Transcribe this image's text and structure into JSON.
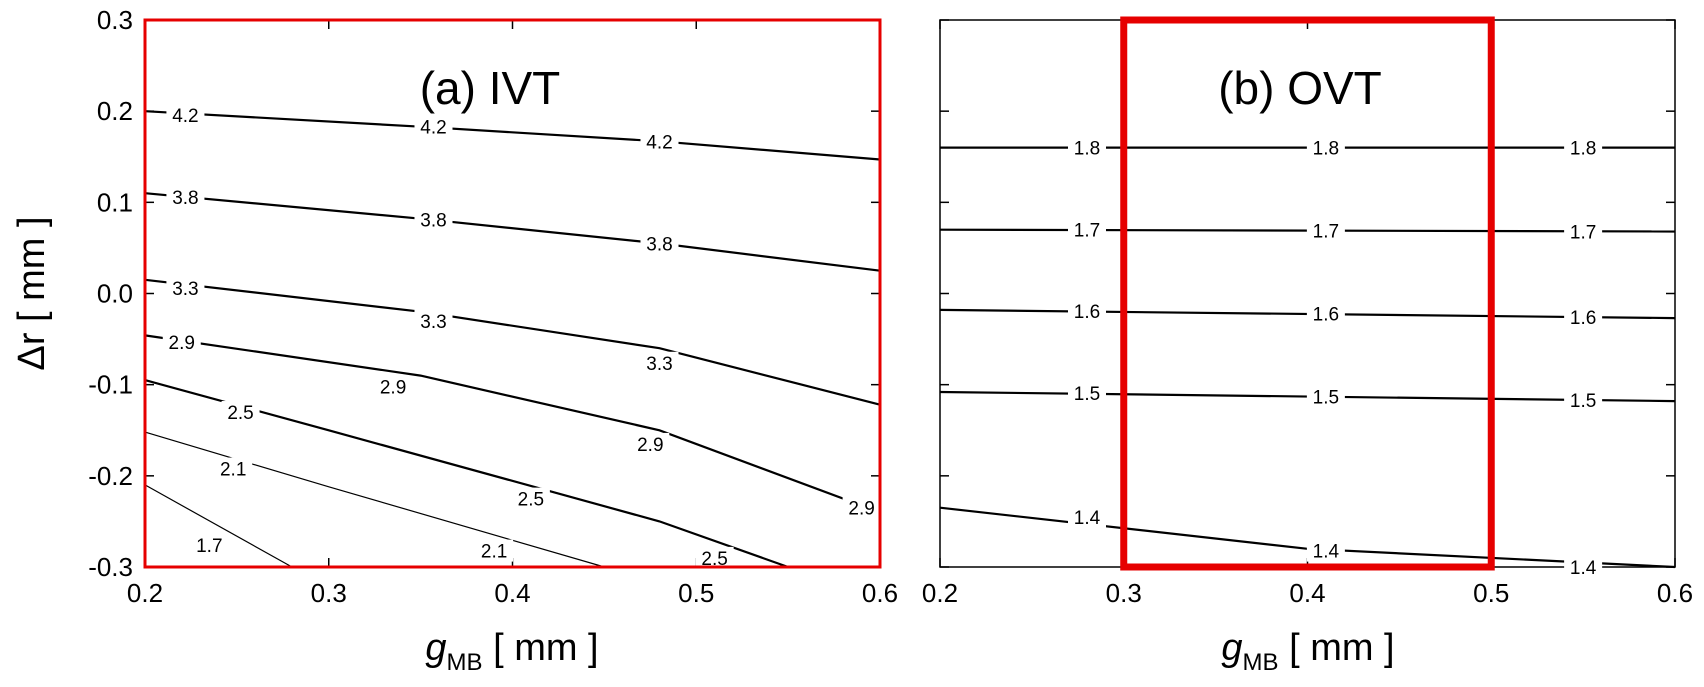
{
  "chart_data": [
    {
      "type": "contour",
      "title": "(a) IVT",
      "xlabel": "g",
      "xlabel_sub": "MB",
      "xlabel_unit": " [ mm ]",
      "ylabel": "Δr [ mm ]",
      "xlim": [
        0.2,
        0.6
      ],
      "ylim": [
        -0.3,
        0.3
      ],
      "x_ticks": [
        "0.2",
        "0.3",
        "0.4",
        "0.5",
        "0.6"
      ],
      "y_ticks": [
        "0.3",
        "0.2",
        "0.1",
        "0.0",
        "-0.1",
        "-0.2",
        "-0.3"
      ],
      "highlight_color": "#e60000",
      "highlight_x_range": [
        0.2,
        0.6
      ],
      "contours": [
        {
          "level": "4.2",
          "points": [
            [
              0.2,
              0.2
            ],
            [
              0.35,
              0.183
            ],
            [
              0.48,
              0.167
            ],
            [
              0.6,
              0.147
            ]
          ],
          "labels": [
            [
              0.222,
              0.196
            ],
            [
              0.357,
              0.183
            ],
            [
              0.48,
              0.167
            ]
          ]
        },
        {
          "level": "3.8",
          "points": [
            [
              0.2,
              0.11
            ],
            [
              0.35,
              0.082
            ],
            [
              0.48,
              0.055
            ],
            [
              0.6,
              0.025
            ]
          ],
          "labels": [
            [
              0.222,
              0.106
            ],
            [
              0.357,
              0.081
            ],
            [
              0.48,
              0.055
            ]
          ]
        },
        {
          "level": "3.3",
          "points": [
            [
              0.2,
              0.015
            ],
            [
              0.35,
              -0.02
            ],
            [
              0.48,
              -0.06
            ],
            [
              0.6,
              -0.122
            ]
          ],
          "labels": [
            [
              0.222,
              0.006
            ],
            [
              0.357,
              -0.03
            ],
            [
              0.48,
              -0.076
            ]
          ]
        },
        {
          "level": "2.9",
          "points": [
            [
              0.2,
              -0.046
            ],
            [
              0.35,
              -0.09
            ],
            [
              0.48,
              -0.15
            ],
            [
              0.6,
              -0.24
            ]
          ],
          "labels": [
            [
              0.22,
              -0.053
            ],
            [
              0.335,
              -0.102
            ],
            [
              0.475,
              -0.165
            ],
            [
              0.59,
              -0.235
            ]
          ]
        },
        {
          "level": "2.5",
          "points": [
            [
              0.2,
              -0.095
            ],
            [
              0.3,
              -0.15
            ],
            [
              0.48,
              -0.25
            ],
            [
              0.55,
              -0.3
            ]
          ],
          "labels": [
            [
              0.252,
              -0.13
            ],
            [
              0.41,
              -0.225
            ],
            [
              0.51,
              -0.29
            ]
          ]
        },
        {
          "level": "2.1",
          "points": [
            [
              0.2,
              -0.152
            ],
            [
              0.3,
              -0.212
            ],
            [
              0.45,
              -0.3
            ]
          ],
          "labels": [
            [
              0.248,
              -0.192
            ],
            [
              0.39,
              -0.282
            ]
          ]
        },
        {
          "level": "1.7",
          "points": [
            [
              0.2,
              -0.21
            ],
            [
              0.28,
              -0.3
            ]
          ],
          "labels": [
            [
              0.235,
              -0.276
            ]
          ]
        }
      ]
    },
    {
      "type": "contour",
      "title": "(b) OVT",
      "xlabel": "g",
      "xlabel_sub": "MB",
      "xlabel_unit": " [ mm ]",
      "xlim": [
        0.2,
        0.6
      ],
      "ylim": [
        -0.3,
        0.3
      ],
      "x_ticks": [
        "0.2",
        "0.3",
        "0.4",
        "0.5",
        "0.6"
      ],
      "highlight_color": "#e60000",
      "highlight_x_range": [
        0.3,
        0.5
      ],
      "contours": [
        {
          "level": "1.8",
          "points": [
            [
              0.2,
              0.16
            ],
            [
              0.6,
              0.16
            ]
          ],
          "labels": [
            [
              0.28,
              0.16
            ],
            [
              0.41,
              0.16
            ],
            [
              0.55,
              0.16
            ]
          ]
        },
        {
          "level": "1.7",
          "points": [
            [
              0.2,
              0.07
            ],
            [
              0.6,
              0.068
            ]
          ],
          "labels": [
            [
              0.28,
              0.07
            ],
            [
              0.41,
              0.069
            ],
            [
              0.55,
              0.068
            ]
          ]
        },
        {
          "level": "1.6",
          "points": [
            [
              0.2,
              -0.018
            ],
            [
              0.6,
              -0.027
            ]
          ],
          "labels": [
            [
              0.28,
              -0.019
            ],
            [
              0.41,
              -0.022
            ],
            [
              0.55,
              -0.026
            ]
          ]
        },
        {
          "level": "1.5",
          "points": [
            [
              0.2,
              -0.108
            ],
            [
              0.6,
              -0.118
            ]
          ],
          "labels": [
            [
              0.28,
              -0.109
            ],
            [
              0.41,
              -0.113
            ],
            [
              0.55,
              -0.117
            ]
          ]
        },
        {
          "level": "1.4",
          "points": [
            [
              0.2,
              -0.235
            ],
            [
              0.4,
              -0.28
            ],
            [
              0.6,
              -0.3
            ]
          ],
          "labels": [
            [
              0.28,
              -0.245
            ],
            [
              0.41,
              -0.282
            ],
            [
              0.55,
              -0.3
            ]
          ]
        }
      ]
    }
  ]
}
